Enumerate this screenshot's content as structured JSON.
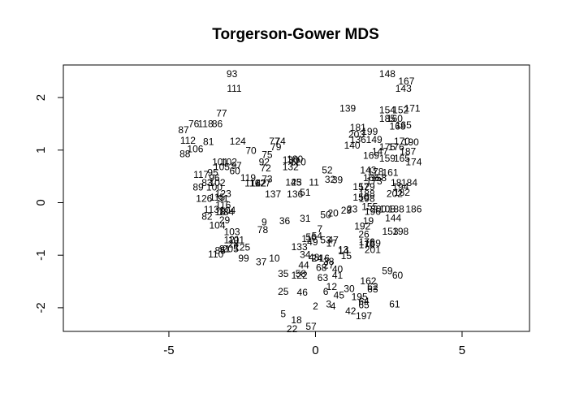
{
  "chart_data": {
    "type": "scatter",
    "title": "Torgerson-Gower MDS",
    "xlabel": "",
    "ylabel": "",
    "xlim": [
      -8.6,
      7.3
    ],
    "ylim": [
      -2.45,
      2.62
    ],
    "x_ticks": [
      -5,
      0,
      5
    ],
    "x_tick_labels": [
      "-5",
      "0",
      "5"
    ],
    "y_ticks": [
      -2,
      -1,
      0,
      1,
      2
    ],
    "y_tick_labels": [
      "-2",
      "-1",
      "0",
      "1",
      "2"
    ],
    "grid": false,
    "legend": "none",
    "marker": "text-label",
    "points": [
      {
        "label": "93",
        "x": -2.85,
        "y": 2.45
      },
      {
        "label": "111",
        "x": -2.77,
        "y": 2.17
      },
      {
        "label": "148",
        "x": 2.45,
        "y": 2.45
      },
      {
        "label": "167",
        "x": 3.1,
        "y": 2.31
      },
      {
        "label": "143",
        "x": 3.0,
        "y": 2.17
      },
      {
        "label": "139",
        "x": 1.1,
        "y": 1.79
      },
      {
        "label": "154",
        "x": 2.45,
        "y": 1.76
      },
      {
        "label": "152",
        "x": 2.9,
        "y": 1.76
      },
      {
        "label": "171",
        "x": 3.3,
        "y": 1.79
      },
      {
        "label": "185",
        "x": 2.45,
        "y": 1.6
      },
      {
        "label": "160",
        "x": 2.7,
        "y": 1.6
      },
      {
        "label": "168",
        "x": 2.8,
        "y": 1.45
      },
      {
        "label": "165",
        "x": 3.0,
        "y": 1.48
      },
      {
        "label": "77",
        "x": -3.2,
        "y": 1.7
      },
      {
        "label": "118",
        "x": -3.75,
        "y": 1.5
      },
      {
        "label": "76",
        "x": -4.15,
        "y": 1.5
      },
      {
        "label": "86",
        "x": -3.35,
        "y": 1.5
      },
      {
        "label": "87",
        "x": -4.5,
        "y": 1.38
      },
      {
        "label": "181",
        "x": 1.45,
        "y": 1.43
      },
      {
        "label": "199",
        "x": 1.85,
        "y": 1.35
      },
      {
        "label": "203",
        "x": 1.4,
        "y": 1.3
      },
      {
        "label": "112",
        "x": -4.35,
        "y": 1.18
      },
      {
        "label": "81",
        "x": -3.65,
        "y": 1.16
      },
      {
        "label": "124",
        "x": -2.65,
        "y": 1.17
      },
      {
        "label": "77",
        "x": -1.4,
        "y": 1.17
      },
      {
        "label": "74",
        "x": -1.2,
        "y": 1.17
      },
      {
        "label": "136",
        "x": 1.45,
        "y": 1.2
      },
      {
        "label": "149",
        "x": 2.0,
        "y": 1.2
      },
      {
        "label": "170",
        "x": 2.95,
        "y": 1.17
      },
      {
        "label": "190",
        "x": 3.25,
        "y": 1.15
      },
      {
        "label": "140",
        "x": 1.25,
        "y": 1.09
      },
      {
        "label": "106",
        "x": -4.1,
        "y": 1.02
      },
      {
        "label": "70",
        "x": -2.2,
        "y": 0.99
      },
      {
        "label": "79",
        "x": -1.35,
        "y": 1.06
      },
      {
        "label": "175",
        "x": 2.45,
        "y": 1.06
      },
      {
        "label": "176",
        "x": 2.75,
        "y": 1.06
      },
      {
        "label": "187",
        "x": 3.15,
        "y": 0.97
      },
      {
        "label": "88",
        "x": -4.45,
        "y": 0.93
      },
      {
        "label": "75",
        "x": -1.65,
        "y": 0.91
      },
      {
        "label": "147",
        "x": 2.2,
        "y": 0.97
      },
      {
        "label": "169",
        "x": 1.9,
        "y": 0.9
      },
      {
        "label": "159",
        "x": 2.45,
        "y": 0.84
      },
      {
        "label": "165",
        "x": 2.95,
        "y": 0.84
      },
      {
        "label": "174",
        "x": 3.35,
        "y": 0.77
      },
      {
        "label": "101",
        "x": -3.25,
        "y": 0.77
      },
      {
        "label": "102",
        "x": -2.95,
        "y": 0.77
      },
      {
        "label": "105",
        "x": -3.2,
        "y": 0.68
      },
      {
        "label": "97",
        "x": -2.7,
        "y": 0.7
      },
      {
        "label": "60",
        "x": -2.75,
        "y": 0.6
      },
      {
        "label": "92",
        "x": -1.75,
        "y": 0.77
      },
      {
        "label": "72",
        "x": -1.7,
        "y": 0.66
      },
      {
        "label": "130",
        "x": -0.85,
        "y": 0.81
      },
      {
        "label": "180",
        "x": -0.7,
        "y": 0.83
      },
      {
        "label": "120",
        "x": -0.6,
        "y": 0.77
      },
      {
        "label": "132",
        "x": -0.85,
        "y": 0.68
      },
      {
        "label": "52",
        "x": 0.4,
        "y": 0.62
      },
      {
        "label": "143",
        "x": 1.8,
        "y": 0.62
      },
      {
        "label": "178",
        "x": 2.05,
        "y": 0.59
      },
      {
        "label": "161",
        "x": 2.55,
        "y": 0.57
      },
      {
        "label": "117",
        "x": -3.9,
        "y": 0.53
      },
      {
        "label": "95",
        "x": -3.5,
        "y": 0.57
      },
      {
        "label": "96",
        "x": -3.45,
        "y": 0.47
      },
      {
        "label": "119",
        "x": -2.3,
        "y": 0.47
      },
      {
        "label": "73",
        "x": -1.65,
        "y": 0.45
      },
      {
        "label": "32",
        "x": 0.5,
        "y": 0.44
      },
      {
        "label": "39",
        "x": 0.75,
        "y": 0.43
      },
      {
        "label": "166",
        "x": 1.9,
        "y": 0.47
      },
      {
        "label": "158",
        "x": 2.15,
        "y": 0.47
      },
      {
        "label": "173",
        "x": 2.0,
        "y": 0.41
      },
      {
        "label": "83",
        "x": -3.7,
        "y": 0.38
      },
      {
        "label": "102",
        "x": -3.35,
        "y": 0.38
      },
      {
        "label": "116",
        "x": -2.15,
        "y": 0.37
      },
      {
        "label": "142",
        "x": -1.95,
        "y": 0.37
      },
      {
        "label": "127",
        "x": -1.8,
        "y": 0.37
      },
      {
        "label": "145",
        "x": -0.75,
        "y": 0.39
      },
      {
        "label": "23",
        "x": -0.65,
        "y": 0.39
      },
      {
        "label": "11",
        "x": -0.05,
        "y": 0.39
      },
      {
        "label": "18",
        "x": 2.75,
        "y": 0.38
      },
      {
        "label": "184",
        "x": 3.2,
        "y": 0.38
      },
      {
        "label": "157",
        "x": 1.55,
        "y": 0.3
      },
      {
        "label": "129",
        "x": 1.75,
        "y": 0.3
      },
      {
        "label": "194",
        "x": 2.9,
        "y": 0.3
      },
      {
        "label": "89",
        "x": -4.0,
        "y": 0.29
      },
      {
        "label": "100",
        "x": -3.45,
        "y": 0.29
      },
      {
        "label": "123",
        "x": -3.15,
        "y": 0.17
      },
      {
        "label": "137",
        "x": -1.45,
        "y": 0.16
      },
      {
        "label": "136",
        "x": -0.7,
        "y": 0.16
      },
      {
        "label": "51",
        "x": -0.35,
        "y": 0.19
      },
      {
        "label": "188",
        "x": 1.75,
        "y": 0.17
      },
      {
        "label": "202",
        "x": 2.7,
        "y": 0.17
      },
      {
        "label": "182",
        "x": 2.95,
        "y": 0.19
      },
      {
        "label": "126",
        "x": -3.8,
        "y": 0.08
      },
      {
        "label": "115",
        "x": -3.35,
        "y": 0.1
      },
      {
        "label": "91",
        "x": -3.15,
        "y": 0.08
      },
      {
        "label": "150",
        "x": 1.55,
        "y": 0.1
      },
      {
        "label": "198",
        "x": 1.75,
        "y": 0.08
      },
      {
        "label": "116",
        "x": -3.15,
        "y": -0.05
      },
      {
        "label": "113",
        "x": -3.55,
        "y": -0.13
      },
      {
        "label": "104",
        "x": -3.0,
        "y": -0.15
      },
      {
        "label": "18",
        "x": -3.25,
        "y": -0.18
      },
      {
        "label": "184",
        "x": -3.05,
        "y": -0.18
      },
      {
        "label": "82",
        "x": -3.7,
        "y": -0.26
      },
      {
        "label": "29",
        "x": -3.1,
        "y": -0.33
      },
      {
        "label": "50",
        "x": 0.35,
        "y": -0.23
      },
      {
        "label": "20",
        "x": 0.6,
        "y": -0.2
      },
      {
        "label": "29",
        "x": 1.05,
        "y": -0.15
      },
      {
        "label": "23",
        "x": 1.25,
        "y": -0.12
      },
      {
        "label": "155",
        "x": 1.85,
        "y": -0.08
      },
      {
        "label": "200",
        "x": 2.15,
        "y": -0.12
      },
      {
        "label": "196",
        "x": 1.95,
        "y": -0.17
      },
      {
        "label": "108",
        "x": 2.45,
        "y": -0.12
      },
      {
        "label": "188",
        "x": 2.75,
        "y": -0.12
      },
      {
        "label": "186",
        "x": 3.35,
        "y": -0.12
      },
      {
        "label": "144",
        "x": 2.65,
        "y": -0.29
      },
      {
        "label": "104",
        "x": -3.35,
        "y": -0.43
      },
      {
        "label": "9",
        "x": -1.75,
        "y": -0.37
      },
      {
        "label": "36",
        "x": -1.05,
        "y": -0.35
      },
      {
        "label": "31",
        "x": -0.35,
        "y": -0.3
      },
      {
        "label": "192",
        "x": 1.6,
        "y": -0.45
      },
      {
        "label": "19",
        "x": 1.8,
        "y": -0.35
      },
      {
        "label": "78",
        "x": -1.8,
        "y": -0.52
      },
      {
        "label": "103",
        "x": -2.85,
        "y": -0.56
      },
      {
        "label": "7",
        "x": 0.15,
        "y": -0.5
      },
      {
        "label": "26",
        "x": 1.65,
        "y": -0.6
      },
      {
        "label": "153",
        "x": 2.55,
        "y": -0.55
      },
      {
        "label": "198",
        "x": 2.9,
        "y": -0.55
      },
      {
        "label": "121",
        "x": -2.85,
        "y": -0.71
      },
      {
        "label": "101",
        "x": -2.7,
        "y": -0.71
      },
      {
        "label": "28",
        "x": -2.8,
        "y": -0.79
      },
      {
        "label": "54",
        "x": 0.05,
        "y": -0.63
      },
      {
        "label": "53",
        "x": 0.35,
        "y": -0.71
      },
      {
        "label": "56",
        "x": -0.15,
        "y": -0.66
      },
      {
        "label": "49",
        "x": -0.1,
        "y": -0.75
      },
      {
        "label": "11",
        "x": -0.3,
        "y": -0.69
      },
      {
        "label": "17",
        "x": 0.55,
        "y": -0.77
      },
      {
        "label": "47",
        "x": 0.6,
        "y": -0.71
      },
      {
        "label": "176",
        "x": 1.75,
        "y": -0.75
      },
      {
        "label": "189",
        "x": 1.95,
        "y": -0.77
      },
      {
        "label": "170",
        "x": 1.75,
        "y": -0.8
      },
      {
        "label": "133",
        "x": -0.55,
        "y": -0.84
      },
      {
        "label": "205",
        "x": -2.9,
        "y": -0.88
      },
      {
        "label": "125",
        "x": -2.5,
        "y": -0.85
      },
      {
        "label": "85",
        "x": -3.25,
        "y": -0.91
      },
      {
        "label": "91",
        "x": -3.1,
        "y": -0.88
      },
      {
        "label": "110",
        "x": -3.4,
        "y": -0.98
      },
      {
        "label": "99",
        "x": -2.45,
        "y": -1.06
      },
      {
        "label": "201",
        "x": 1.95,
        "y": -0.9
      },
      {
        "label": "13",
        "x": 0.95,
        "y": -0.9
      },
      {
        "label": "14",
        "x": 0.95,
        "y": -0.92
      },
      {
        "label": "15",
        "x": 1.05,
        "y": -1.01
      },
      {
        "label": "34",
        "x": -0.35,
        "y": -0.99
      },
      {
        "label": "24",
        "x": 0.05,
        "y": -1.06
      },
      {
        "label": "48",
        "x": -0.05,
        "y": -1.04
      },
      {
        "label": "16",
        "x": 0.3,
        "y": -1.06
      },
      {
        "label": "38",
        "x": 0.45,
        "y": -1.12
      },
      {
        "label": "10",
        "x": -1.4,
        "y": -1.06
      },
      {
        "label": "37",
        "x": -1.85,
        "y": -1.13
      },
      {
        "label": "44",
        "x": -0.4,
        "y": -1.19
      },
      {
        "label": "68",
        "x": 0.2,
        "y": -1.24
      },
      {
        "label": "27",
        "x": 0.45,
        "y": -1.19
      },
      {
        "label": "40",
        "x": 0.75,
        "y": -1.27
      },
      {
        "label": "35",
        "x": -1.1,
        "y": -1.35
      },
      {
        "label": "58",
        "x": -0.5,
        "y": -1.35
      },
      {
        "label": "122",
        "x": -0.55,
        "y": -1.38
      },
      {
        "label": "63",
        "x": 0.25,
        "y": -1.43
      },
      {
        "label": "41",
        "x": 0.75,
        "y": -1.38
      },
      {
        "label": "59",
        "x": 2.45,
        "y": -1.3
      },
      {
        "label": "60",
        "x": 2.8,
        "y": -1.38
      },
      {
        "label": "162",
        "x": 1.8,
        "y": -1.49
      },
      {
        "label": "12",
        "x": 0.55,
        "y": -1.6
      },
      {
        "label": "30",
        "x": 1.15,
        "y": -1.64
      },
      {
        "label": "62",
        "x": 1.95,
        "y": -1.6
      },
      {
        "label": "63",
        "x": 1.95,
        "y": -1.65
      },
      {
        "label": "25",
        "x": -1.1,
        "y": -1.69
      },
      {
        "label": "46",
        "x": -0.45,
        "y": -1.71
      },
      {
        "label": "6",
        "x": 0.35,
        "y": -1.69
      },
      {
        "label": "45",
        "x": 0.8,
        "y": -1.76
      },
      {
        "label": "195",
        "x": 1.5,
        "y": -1.79
      },
      {
        "label": "64",
        "x": 1.65,
        "y": -1.88
      },
      {
        "label": "65",
        "x": 1.65,
        "y": -1.95
      },
      {
        "label": "61",
        "x": 2.7,
        "y": -1.93
      },
      {
        "label": "2",
        "x": 0.0,
        "y": -1.97
      },
      {
        "label": "3",
        "x": 0.45,
        "y": -1.93
      },
      {
        "label": "4",
        "x": 0.6,
        "y": -1.97
      },
      {
        "label": "42",
        "x": 1.2,
        "y": -2.06
      },
      {
        "label": "197",
        "x": 1.65,
        "y": -2.16
      },
      {
        "label": "5",
        "x": -1.1,
        "y": -2.12
      },
      {
        "label": "18",
        "x": -0.65,
        "y": -2.23
      },
      {
        "label": "57",
        "x": -0.15,
        "y": -2.36
      },
      {
        "label": "22",
        "x": -0.8,
        "y": -2.4
      }
    ]
  }
}
